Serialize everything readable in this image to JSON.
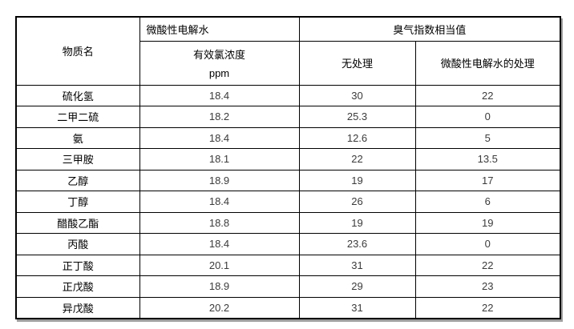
{
  "table": {
    "header": {
      "substance_col": "物质名",
      "group_left": "微酸性电解水",
      "group_left_sub_line1": "有效氯浓度",
      "group_left_sub_line2": "ppm",
      "group_right": "臭气指数相当值",
      "group_right_sub1": "无处理",
      "group_right_sub2": "微酸性电解水的处理"
    },
    "rows": [
      {
        "name": "硫化氢",
        "chlorine_ppm": "18.4",
        "untreated": "30",
        "treated": "22"
      },
      {
        "name": "二甲二硫",
        "chlorine_ppm": "18.2",
        "untreated": "25.3",
        "treated": "0"
      },
      {
        "name": "氨",
        "chlorine_ppm": "18.4",
        "untreated": "12.6",
        "treated": "5"
      },
      {
        "name": "三甲胺",
        "chlorine_ppm": "18.1",
        "untreated": "22",
        "treated": "13.5"
      },
      {
        "name": "乙醇",
        "chlorine_ppm": "18.9",
        "untreated": "19",
        "treated": "17"
      },
      {
        "name": "丁醇",
        "chlorine_ppm": "18.4",
        "untreated": "26",
        "treated": "6"
      },
      {
        "name": "醋酸乙酯",
        "chlorine_ppm": "18.8",
        "untreated": "19",
        "treated": "19"
      },
      {
        "name": "丙酸",
        "chlorine_ppm": "18.4",
        "untreated": "23.6",
        "treated": "0"
      },
      {
        "name": "正丁酸",
        "chlorine_ppm": "20.1",
        "untreated": "31",
        "treated": "22"
      },
      {
        "name": "正戊酸",
        "chlorine_ppm": "18.9",
        "untreated": "29",
        "treated": "23"
      },
      {
        "name": "异戊酸",
        "chlorine_ppm": "20.2",
        "untreated": "31",
        "treated": "22"
      }
    ],
    "colors": {
      "border": "#000000",
      "number_text": "#3b3b3b",
      "label_text": "#000000",
      "shadow": "#9f9f9f"
    }
  }
}
